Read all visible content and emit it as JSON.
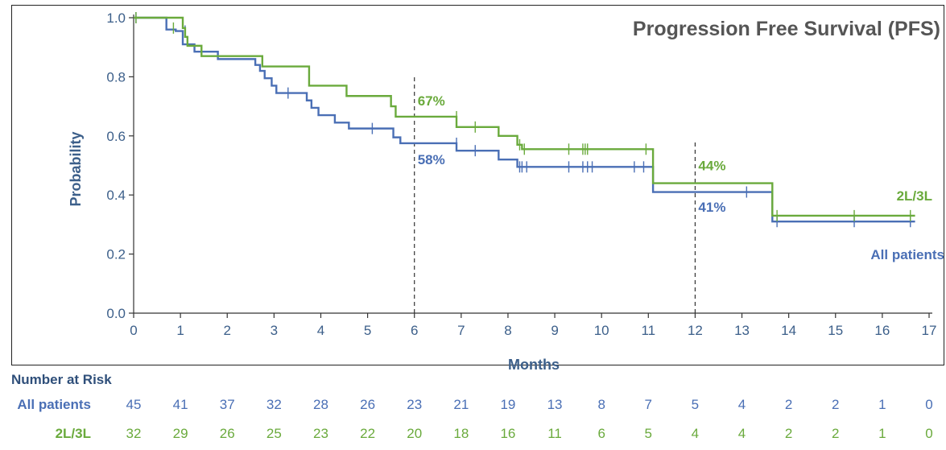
{
  "chart_data": {
    "type": "line",
    "title": "Progression Free Survival (PFS)",
    "xlabel": "Months",
    "ylabel": "Probability",
    "xlim": [
      0,
      17
    ],
    "ylim": [
      0,
      1
    ],
    "x_ticks": [
      "0",
      "1",
      "2",
      "3",
      "4",
      "5",
      "6",
      "7",
      "8",
      "9",
      "10",
      "11",
      "12",
      "13",
      "14",
      "15",
      "16",
      "17"
    ],
    "y_ticks": [
      "0.0",
      "0.2",
      "0.4",
      "0.6",
      "0.8",
      "1.0"
    ],
    "grid": false,
    "series": [
      {
        "name": "All patients",
        "color": "#4a6fb5",
        "steps": [
          [
            0,
            1.0
          ],
          [
            0.7,
            0.96
          ],
          [
            0.9,
            0.955
          ],
          [
            1.05,
            0.91
          ],
          [
            1.3,
            0.885
          ],
          [
            1.8,
            0.86
          ],
          [
            2.6,
            0.84
          ],
          [
            2.7,
            0.82
          ],
          [
            2.8,
            0.795
          ],
          [
            2.95,
            0.77
          ],
          [
            3.05,
            0.745
          ],
          [
            3.7,
            0.72
          ],
          [
            3.8,
            0.695
          ],
          [
            3.95,
            0.67
          ],
          [
            4.3,
            0.645
          ],
          [
            4.6,
            0.625
          ],
          [
            5.55,
            0.595
          ],
          [
            5.7,
            0.575
          ],
          [
            6.9,
            0.55
          ],
          [
            7.8,
            0.52
          ],
          [
            8.2,
            0.495
          ],
          [
            11.1,
            0.41
          ],
          [
            13.65,
            0.31
          ],
          [
            16.7,
            0.31
          ]
        ],
        "censored": [
          [
            0.05,
            1.0
          ],
          [
            1.1,
            0.955
          ],
          [
            3.3,
            0.745
          ],
          [
            5.1,
            0.625
          ],
          [
            6.9,
            0.575
          ],
          [
            7.3,
            0.55
          ],
          [
            8.25,
            0.495
          ],
          [
            8.3,
            0.495
          ],
          [
            8.4,
            0.495
          ],
          [
            9.3,
            0.495
          ],
          [
            9.6,
            0.495
          ],
          [
            9.7,
            0.495
          ],
          [
            9.8,
            0.495
          ],
          [
            10.7,
            0.495
          ],
          [
            10.9,
            0.495
          ],
          [
            13.1,
            0.41
          ],
          [
            13.75,
            0.31
          ],
          [
            15.4,
            0.31
          ],
          [
            16.6,
            0.31
          ]
        ]
      },
      {
        "name": "2L/3L",
        "color": "#6aaa3c",
        "steps": [
          [
            0,
            1.0
          ],
          [
            1.05,
            0.965
          ],
          [
            1.1,
            0.935
          ],
          [
            1.15,
            0.905
          ],
          [
            1.45,
            0.87
          ],
          [
            2.6,
            0.87
          ],
          [
            2.75,
            0.835
          ],
          [
            3.75,
            0.77
          ],
          [
            4.55,
            0.735
          ],
          [
            5.5,
            0.7
          ],
          [
            5.6,
            0.665
          ],
          [
            6.9,
            0.63
          ],
          [
            7.8,
            0.6
          ],
          [
            8.2,
            0.57
          ],
          [
            8.3,
            0.555
          ],
          [
            11.1,
            0.44
          ],
          [
            13.65,
            0.33
          ],
          [
            16.7,
            0.33
          ]
        ],
        "censored": [
          [
            0.05,
            1.0
          ],
          [
            0.85,
            0.965
          ],
          [
            6.9,
            0.665
          ],
          [
            7.3,
            0.63
          ],
          [
            8.25,
            0.57
          ],
          [
            8.35,
            0.555
          ],
          [
            9.3,
            0.555
          ],
          [
            9.6,
            0.555
          ],
          [
            9.65,
            0.555
          ],
          [
            9.7,
            0.555
          ],
          [
            10.95,
            0.555
          ],
          [
            13.75,
            0.33
          ],
          [
            15.4,
            0.33
          ],
          [
            16.6,
            0.33
          ]
        ]
      }
    ],
    "reference_lines": [
      {
        "x": 6,
        "ymax": 0.8
      },
      {
        "x": 12,
        "ymax": 0.58
      }
    ],
    "annotations": [
      {
        "text": "67%",
        "series": "2L/3L",
        "x": 6,
        "y": 0.72
      },
      {
        "text": "58%",
        "series": "All patients",
        "x": 6,
        "y": 0.52
      },
      {
        "text": "44%",
        "series": "2L/3L",
        "x": 12,
        "y": 0.5
      },
      {
        "text": "41%",
        "series": "All patients",
        "x": 12,
        "y": 0.36
      }
    ],
    "series_labels": [
      {
        "text": "2L/3L",
        "series": "2L/3L"
      },
      {
        "text": "All patients",
        "series": "All patients"
      }
    ],
    "number_at_risk": {
      "header": "Number at Risk",
      "rows": [
        {
          "label": "All patients",
          "series": "All patients",
          "values": [
            "45",
            "41",
            "37",
            "32",
            "28",
            "26",
            "23",
            "21",
            "19",
            "13",
            "8",
            "7",
            "5",
            "4",
            "2",
            "2",
            "1",
            "0"
          ]
        },
        {
          "label": "2L/3L",
          "series": "2L/3L",
          "values": [
            "32",
            "29",
            "26",
            "25",
            "23",
            "22",
            "20",
            "18",
            "16",
            "11",
            "6",
            "5",
            "4",
            "4",
            "2",
            "2",
            "1",
            "0"
          ]
        }
      ]
    }
  }
}
